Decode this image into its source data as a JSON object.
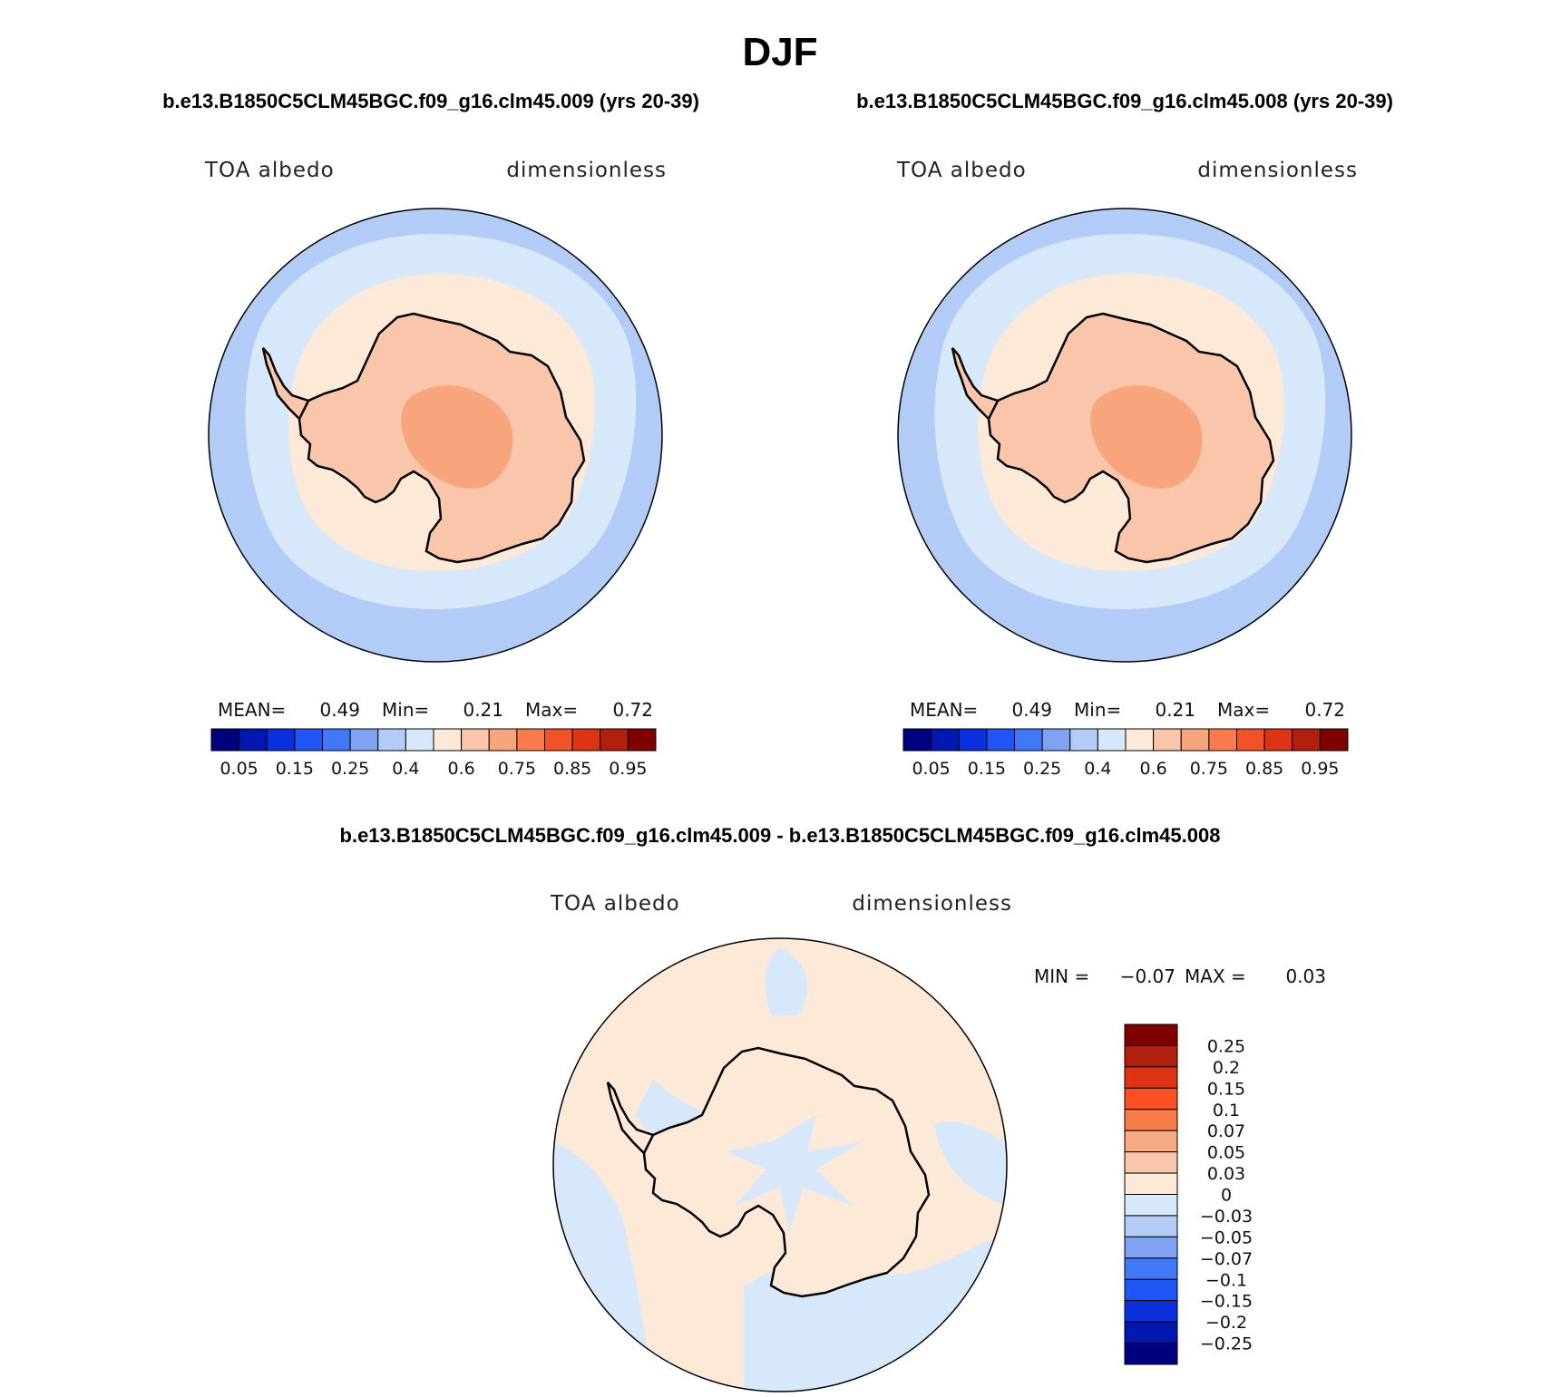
{
  "title": "DJF",
  "panels": [
    {
      "case_title": "b.e13.B1850C5CLM45BGC.f09_g16.clm45.009 (yrs 20-39)",
      "variable": "TOA albedo",
      "units": "dimensionless",
      "stats": {
        "mean_label": "MEAN=",
        "mean": "0.49",
        "min_label": "Min=",
        "min": "0.21",
        "max_label": "Max=",
        "max": "0.72"
      }
    },
    {
      "case_title": "b.e13.B1850C5CLM45BGC.f09_g16.clm45.008 (yrs 20-39)",
      "variable": "TOA albedo",
      "units": "dimensionless",
      "stats": {
        "mean_label": "MEAN=",
        "mean": "0.49",
        "min_label": "Min=",
        "min": "0.21",
        "max_label": "Max=",
        "max": "0.72"
      }
    },
    {
      "case_title": "b.e13.B1850C5CLM45BGC.f09_g16.clm45.009 - b.e13.B1850C5CLM45BGC.f09_g16.clm45.008",
      "variable": "TOA albedo",
      "units": "dimensionless",
      "stats": {
        "min_label": "MIN =",
        "min": "−0.07",
        "max_label": "MAX =",
        "max": "0.03"
      }
    }
  ],
  "colorbar_abs": {
    "colors": [
      "#00007f",
      "#0018b0",
      "#0b30dd",
      "#1f55f5",
      "#4178f5",
      "#7fa3f2",
      "#b3cbf7",
      "#d8e8fb",
      "#fde9d8",
      "#f9c6ab",
      "#f8a57e",
      "#f77b4d",
      "#f0522a",
      "#dc3414",
      "#b1200c",
      "#7e0000"
    ],
    "labels": [
      "0.05",
      "0.15",
      "0.25",
      "0.4",
      "0.6",
      "0.75",
      "0.85",
      "0.95"
    ]
  },
  "colorbar_diff": {
    "colors": [
      "#7e0000",
      "#b1200c",
      "#dc3414",
      "#fb5020",
      "#f87b4a",
      "#f8aa83",
      "#f9c6ab",
      "#fde9d8",
      "#d8e8fb",
      "#b3cbf7",
      "#7fa3f2",
      "#4178f5",
      "#1f55f5",
      "#0b30dd",
      "#0018b0",
      "#00007f"
    ],
    "labels": [
      "0.25",
      "0.2",
      "0.15",
      "0.1",
      "0.07",
      "0.05",
      "0.03",
      "0",
      "−0.03",
      "−0.05",
      "−0.07",
      "−0.1",
      "−0.15",
      "−0.2",
      "−0.25"
    ]
  },
  "map_colors": {
    "ocean_outer": "#b3cbf7",
    "sea_ice_zone": "#d8e8fb",
    "coast_zone": "#fde9d8",
    "continent": "#f9c6ab",
    "interior": "#f8a57e",
    "diff_positive": "#fde9d8",
    "diff_negative": "#d8e8fb",
    "diff_negative_strong": "#b3cbf7"
  }
}
